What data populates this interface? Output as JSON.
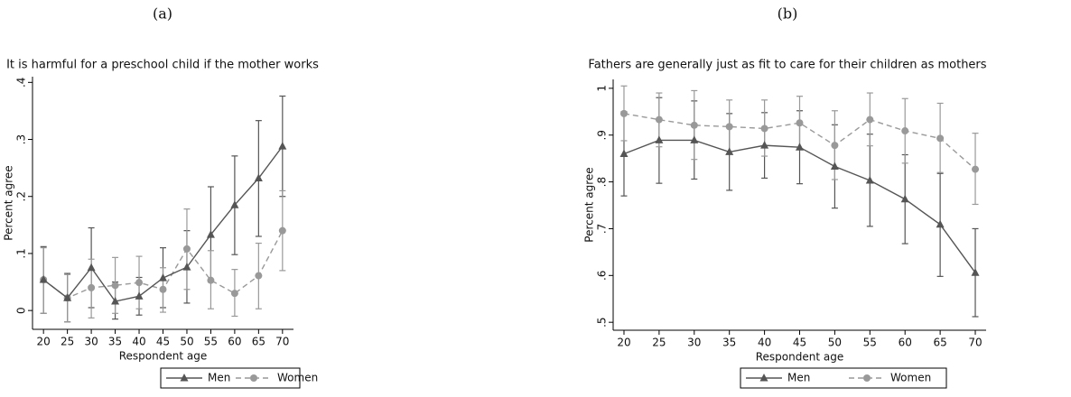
{
  "chart_data": [
    {
      "type": "line",
      "panel": "(a)",
      "title": "It is harmful for a preschool child if the mother works",
      "x_label": "Respondent age",
      "y_label": "Percent agree",
      "x": [
        20,
        25,
        30,
        35,
        40,
        45,
        50,
        55,
        60,
        65,
        70
      ],
      "xlim": [
        17.7,
        72.3
      ],
      "xticks": [
        20,
        25,
        30,
        35,
        40,
        45,
        50,
        55,
        60,
        65,
        70
      ],
      "ylim": [
        -0.033,
        0.41
      ],
      "yticks": [
        0,
        {
          "value": 0.1,
          "label": ".1"
        },
        {
          "value": 0.2,
          "label": ".2"
        },
        {
          "value": 0.3,
          "label": ".3"
        },
        {
          "value": 0.4,
          "label": ".4"
        }
      ],
      "series": [
        {
          "name": "Men",
          "color": "#555555",
          "dash": false,
          "marker": "triangle",
          "values": [
            0.054,
            0.022,
            0.075,
            0.016,
            0.025,
            0.057,
            0.076,
            0.133,
            0.185,
            0.232,
            0.288
          ],
          "ci_low": [
            -0.005,
            -0.02,
            0.005,
            -0.015,
            -0.008,
            0.005,
            0.013,
            0.05,
            0.098,
            0.13,
            0.2
          ],
          "ci_high": [
            0.112,
            0.065,
            0.145,
            0.05,
            0.058,
            0.11,
            0.14,
            0.217,
            0.271,
            0.333,
            0.376
          ]
        },
        {
          "name": "Women",
          "color": "#999999",
          "dash": true,
          "marker": "circle",
          "values": [
            0.054,
            0.022,
            0.04,
            0.044,
            0.049,
            0.037,
            0.108,
            0.053,
            0.03,
            0.061,
            0.14
          ],
          "ci_low": [
            -0.005,
            -0.02,
            -0.013,
            -0.005,
            0.003,
            -0.003,
            0.037,
            0.003,
            -0.01,
            0.003,
            0.07
          ],
          "ci_high": [
            0.11,
            0.063,
            0.09,
            0.093,
            0.095,
            0.075,
            0.178,
            0.105,
            0.072,
            0.118,
            0.21
          ]
        }
      ]
    },
    {
      "type": "line",
      "panel": "(b)",
      "title": "Fathers are generally just as fit to care for their children as mothers",
      "x_label": "Respondent age",
      "y_label": "Percent agree",
      "x": [
        20,
        25,
        30,
        35,
        40,
        45,
        50,
        55,
        60,
        65,
        70
      ],
      "xlim": [
        18.46,
        71.54
      ],
      "xticks": [
        20,
        25,
        30,
        35,
        40,
        45,
        50,
        55,
        60,
        65,
        70
      ],
      "ylim": [
        0.483,
        1.019
      ],
      "yticks": [
        {
          "value": 0.5,
          "label": ".5"
        },
        {
          "value": 0.6,
          "label": ".6"
        },
        {
          "value": 0.7,
          "label": ".7"
        },
        {
          "value": 0.8,
          "label": ".8"
        },
        {
          "value": 0.9,
          "label": ".9"
        },
        1
      ],
      "series": [
        {
          "name": "Men",
          "color": "#555555",
          "dash": false,
          "marker": "triangle",
          "values": [
            0.86,
            0.889,
            0.889,
            0.864,
            0.878,
            0.874,
            0.833,
            0.803,
            0.763,
            0.709,
            0.606
          ],
          "ci_low": [
            0.77,
            0.797,
            0.806,
            0.782,
            0.808,
            0.796,
            0.744,
            0.705,
            0.668,
            0.598,
            0.512
          ],
          "ci_high": [
            0.95,
            0.98,
            0.973,
            0.946,
            0.948,
            0.952,
            0.922,
            0.902,
            0.858,
            0.818,
            0.7
          ]
        },
        {
          "name": "Women",
          "color": "#999999",
          "dash": true,
          "marker": "circle",
          "values": [
            0.946,
            0.933,
            0.921,
            0.918,
            0.914,
            0.926,
            0.878,
            0.933,
            0.909,
            0.893,
            0.827
          ],
          "ci_low": [
            0.888,
            0.875,
            0.848,
            0.86,
            0.855,
            0.87,
            0.805,
            0.877,
            0.84,
            0.82,
            0.752
          ],
          "ci_high": [
            1.005,
            0.99,
            0.995,
            0.975,
            0.975,
            0.983,
            0.952,
            0.99,
            0.978,
            0.968,
            0.904
          ]
        }
      ]
    }
  ]
}
